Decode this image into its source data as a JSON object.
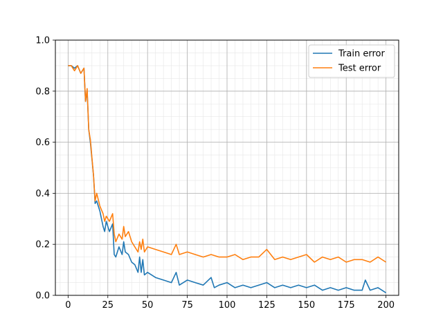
{
  "chart_data": {
    "type": "line",
    "title": "",
    "xlabel": "",
    "ylabel": "",
    "xlim": [
      -8,
      208
    ],
    "ylim": [
      0,
      1
    ],
    "grid": {
      "major": true,
      "minor": true
    },
    "legend_position": "top-right",
    "x_ticks": [
      0,
      25,
      50,
      75,
      100,
      125,
      150,
      175,
      200
    ],
    "x_tick_labels": [
      "0",
      "25",
      "50",
      "75",
      "100",
      "125",
      "150",
      "175",
      "200"
    ],
    "y_ticks": [
      0,
      0.2,
      0.4,
      0.6,
      0.8,
      1.0
    ],
    "y_tick_labels": [
      "0.0",
      "0.2",
      "0.4",
      "0.6",
      "0.8",
      "1.0"
    ],
    "series": [
      {
        "name": "Train error",
        "color": "#1f77b4",
        "x": [
          0,
          2,
          4,
          6,
          8,
          10,
          11,
          12,
          13,
          14,
          16,
          17,
          18,
          20,
          22,
          23,
          24,
          26,
          28,
          29,
          30,
          32,
          34,
          35,
          36,
          38,
          40,
          42,
          44,
          45,
          46,
          47,
          48,
          50,
          55,
          60,
          65,
          68,
          70,
          75,
          80,
          85,
          90,
          92,
          95,
          100,
          105,
          110,
          115,
          120,
          125,
          130,
          135,
          140,
          145,
          150,
          155,
          160,
          165,
          170,
          175,
          180,
          185,
          187,
          190,
          195,
          200
        ],
        "y": [
          0.9,
          0.9,
          0.89,
          0.9,
          0.87,
          0.89,
          0.76,
          0.8,
          0.65,
          0.6,
          0.47,
          0.36,
          0.37,
          0.33,
          0.27,
          0.25,
          0.29,
          0.25,
          0.28,
          0.16,
          0.15,
          0.19,
          0.16,
          0.21,
          0.17,
          0.16,
          0.13,
          0.12,
          0.09,
          0.15,
          0.09,
          0.14,
          0.08,
          0.09,
          0.07,
          0.06,
          0.05,
          0.09,
          0.04,
          0.06,
          0.05,
          0.04,
          0.07,
          0.03,
          0.04,
          0.05,
          0.03,
          0.04,
          0.03,
          0.04,
          0.05,
          0.03,
          0.04,
          0.03,
          0.04,
          0.03,
          0.04,
          0.02,
          0.03,
          0.02,
          0.03,
          0.02,
          0.02,
          0.06,
          0.02,
          0.03,
          0.01
        ]
      },
      {
        "name": "Test error",
        "color": "#ff7f0e",
        "x": [
          0,
          2,
          4,
          6,
          8,
          10,
          11,
          12,
          13,
          14,
          16,
          17,
          18,
          20,
          22,
          23,
          24,
          26,
          28,
          29,
          30,
          32,
          34,
          35,
          36,
          38,
          40,
          42,
          44,
          45,
          46,
          47,
          48,
          50,
          55,
          60,
          65,
          68,
          70,
          75,
          80,
          85,
          90,
          95,
          100,
          105,
          110,
          115,
          120,
          125,
          130,
          135,
          140,
          145,
          150,
          155,
          160,
          165,
          170,
          175,
          180,
          185,
          190,
          195,
          200
        ],
        "y": [
          0.9,
          0.9,
          0.88,
          0.9,
          0.87,
          0.89,
          0.76,
          0.81,
          0.65,
          0.61,
          0.47,
          0.37,
          0.4,
          0.35,
          0.32,
          0.29,
          0.31,
          0.29,
          0.32,
          0.24,
          0.21,
          0.24,
          0.22,
          0.27,
          0.23,
          0.25,
          0.21,
          0.19,
          0.17,
          0.21,
          0.18,
          0.22,
          0.17,
          0.19,
          0.18,
          0.17,
          0.16,
          0.2,
          0.16,
          0.17,
          0.16,
          0.15,
          0.16,
          0.15,
          0.15,
          0.16,
          0.14,
          0.15,
          0.15,
          0.18,
          0.14,
          0.15,
          0.14,
          0.15,
          0.16,
          0.13,
          0.15,
          0.14,
          0.15,
          0.13,
          0.14,
          0.14,
          0.13,
          0.15,
          0.13
        ]
      }
    ]
  }
}
